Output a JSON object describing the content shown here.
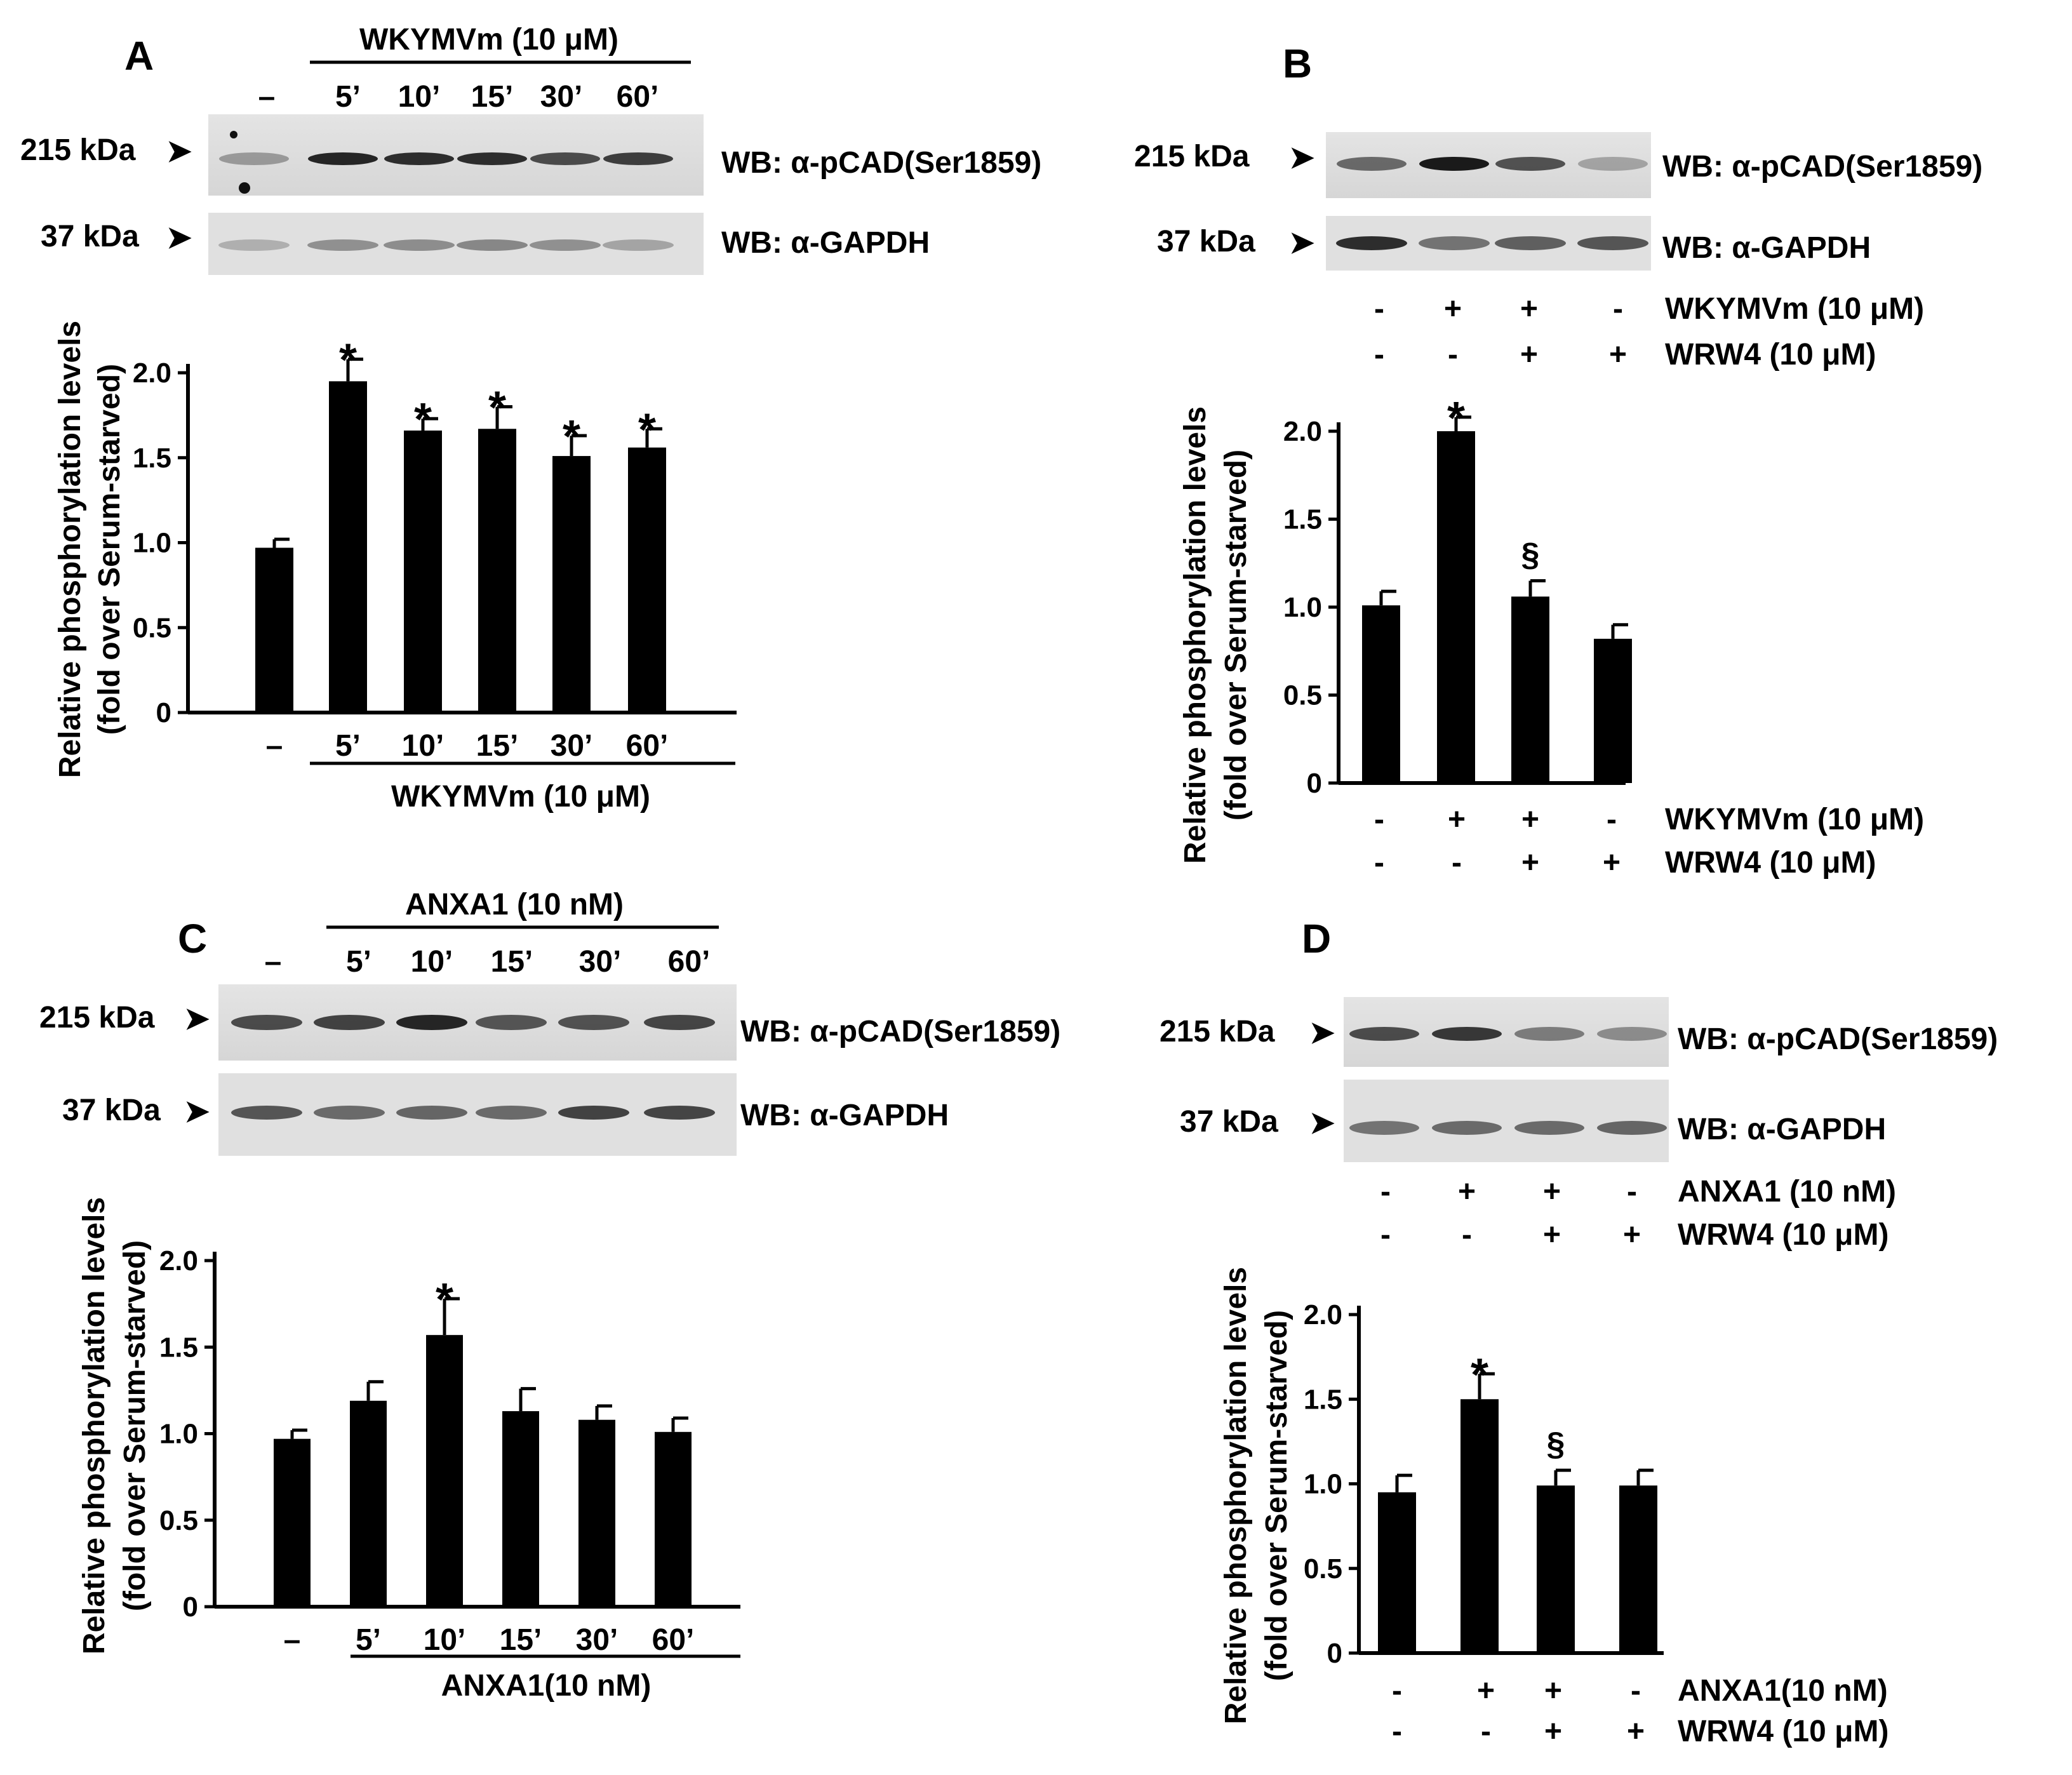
{
  "chart_data": [
    {
      "type": "bar",
      "panel": "A",
      "title": "",
      "ylabel_line1": "Relative phosphorylation levels",
      "ylabel_line2": "(fold over Serum-starved)",
      "ylim": [
        0,
        2.0
      ],
      "yticks": [
        "0",
        "0.5",
        "1.0",
        "1.5",
        "2.0"
      ],
      "categories": [
        "–",
        "5’",
        "10’",
        "15’",
        "30’",
        "60’"
      ],
      "values": [
        0.97,
        1.95,
        1.66,
        1.67,
        1.51,
        1.56
      ],
      "errors": [
        0.05,
        0.13,
        0.07,
        0.13,
        0.12,
        0.11
      ],
      "marks": [
        "",
        "*",
        "*",
        "*",
        "*",
        "*"
      ],
      "group_label": "WKYMVm  (10 μM)",
      "blot": {
        "treatment_label": "WKYMVm (10 μM)",
        "lanes": [
          "–",
          "5’",
          "10’",
          "15’",
          "30’",
          "60’"
        ],
        "rows": [
          {
            "kda": "215 kDa",
            "wb": "WB: α-pCAD(Ser1859)"
          },
          {
            "kda": "37 kDa",
            "wb": "WB: α-GAPDH"
          }
        ]
      }
    },
    {
      "type": "bar",
      "panel": "B",
      "ylabel_line1": "Relative phosphorylation levels",
      "ylabel_line2": "(fold over Serum-starved)",
      "ylim": [
        0,
        2.0
      ],
      "yticks": [
        "0",
        "0.5",
        "1.0",
        "1.5",
        "2.0"
      ],
      "values": [
        1.01,
        2.0,
        1.06,
        0.82
      ],
      "errors": [
        0.08,
        0.08,
        0.09,
        0.08
      ],
      "marks": [
        "",
        "*",
        "§",
        ""
      ],
      "condition_rows": [
        {
          "label": "WKYMVm (10 μM)",
          "signs": [
            "-",
            "+",
            "+",
            "-"
          ]
        },
        {
          "label": "WRW4 (10 μM)",
          "signs": [
            "-",
            "-",
            "+",
            "+"
          ]
        }
      ],
      "blot": {
        "rows": [
          {
            "kda": "215 kDa",
            "wb": "WB: α-pCAD(Ser1859)"
          },
          {
            "kda": "37 kDa",
            "wb": "WB: α-GAPDH"
          }
        ]
      }
    },
    {
      "type": "bar",
      "panel": "C",
      "ylabel_line1": "Relative phosphorylation levels",
      "ylabel_line2": "(fold over Serum-starved)",
      "ylim": [
        0,
        2.0
      ],
      "yticks": [
        "0",
        "0.5",
        "1.0",
        "1.5",
        "2.0"
      ],
      "categories": [
        "–",
        "5’",
        "10’",
        "15’",
        "30’",
        "60’"
      ],
      "values": [
        0.97,
        1.19,
        1.57,
        1.13,
        1.08,
        1.01
      ],
      "errors": [
        0.05,
        0.11,
        0.21,
        0.13,
        0.08,
        0.08
      ],
      "marks": [
        "",
        "",
        "*",
        "",
        "",
        ""
      ],
      "group_label": "ANXA1(10 nM)",
      "blot": {
        "treatment_label": "ANXA1 (10 nM)",
        "lanes": [
          "–",
          "5’",
          "10’",
          "15’",
          "30’",
          "60’"
        ],
        "rows": [
          {
            "kda": "215 kDa",
            "wb": "WB: α-pCAD(Ser1859)"
          },
          {
            "kda": "37 kDa",
            "wb": "WB: α-GAPDH"
          }
        ]
      }
    },
    {
      "type": "bar",
      "panel": "D",
      "ylabel_line1": "Relative phosphorylation levels",
      "ylabel_line2": "(fold over Serum-starved)",
      "ylim": [
        0,
        2.0
      ],
      "yticks": [
        "0",
        "0.5",
        "1.0",
        "1.5",
        "2.0"
      ],
      "values": [
        0.95,
        1.5,
        0.99,
        0.99
      ],
      "errors": [
        0.1,
        0.15,
        0.09,
        0.09
      ],
      "marks": [
        "",
        "*",
        "§",
        ""
      ],
      "blot_condition_rows": [
        {
          "label": "ANXA1 (10 nM)",
          "signs": [
            "-",
            "+",
            "+",
            "-"
          ]
        },
        {
          "label": "WRW4 (10 μM)",
          "signs": [
            "-",
            "-",
            "+",
            "+"
          ]
        }
      ],
      "condition_rows": [
        {
          "label": "ANXA1(10 nM)",
          "signs": [
            "-",
            "+",
            "+",
            "-"
          ]
        },
        {
          "label": "WRW4 (10 μM)",
          "signs": [
            "-",
            "-",
            "+",
            "+"
          ]
        }
      ],
      "blot": {
        "rows": [
          {
            "kda": "215 kDa",
            "wb": "WB: α-pCAD(Ser1859)"
          },
          {
            "kda": "37 kDa",
            "wb": "WB: α-GAPDH"
          }
        ]
      }
    }
  ]
}
